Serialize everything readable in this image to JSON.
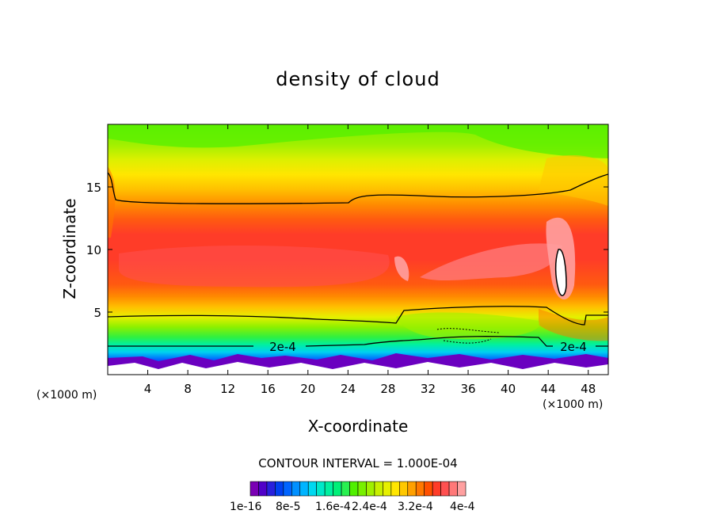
{
  "chart_data": {
    "type": "heatmap",
    "title": "density of cloud",
    "xlabel": "X-coordinate",
    "ylabel": "Z-coordinate",
    "x_unit_label": "(×1000 m)",
    "x_ticks": [
      4,
      8,
      12,
      16,
      20,
      24,
      28,
      32,
      36,
      40,
      44,
      48
    ],
    "y_ticks": [
      5,
      10,
      15
    ],
    "xlim": [
      0,
      50
    ],
    "ylim": [
      0,
      20
    ],
    "contour_interval": "CONTOUR INTERVAL = 1.000E-04",
    "contour_line_label": "2e-4",
    "colorbar_labels": [
      "1e-16",
      "8e-5",
      "1.6e-4",
      "2.4e-4",
      "3.2e-4",
      "4e-4"
    ],
    "colorbar_colors": [
      "#7a00b4",
      "#5000c8",
      "#2820dc",
      "#0040f0",
      "#0064ff",
      "#0090ff",
      "#00b4ff",
      "#00d8f0",
      "#00e8c8",
      "#00f0a0",
      "#00f078",
      "#28f050",
      "#50f000",
      "#78f000",
      "#a0f000",
      "#c8f000",
      "#e6f000",
      "#ffe600",
      "#ffc800",
      "#ffa000",
      "#ff7800",
      "#ff5000",
      "#ff3c28",
      "#ff5050",
      "#ff7878",
      "#ffa0a0"
    ]
  }
}
